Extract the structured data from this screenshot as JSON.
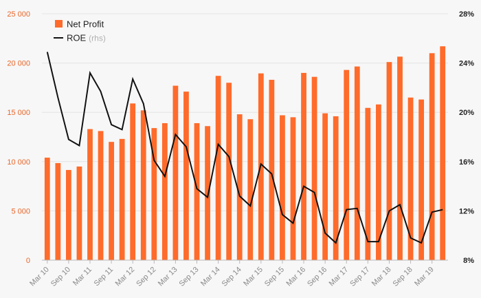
{
  "chart_data": {
    "type": "bar+line",
    "x": [
      "Mar 10",
      "Jun 10",
      "Sep 10",
      "Dec 10",
      "Mar 11",
      "Jun 11",
      "Sep 11",
      "Dec 11",
      "Mar 12",
      "Jun 12",
      "Sep 12",
      "Dec 12",
      "Mar 13",
      "Jun 13",
      "Sep 13",
      "Dec 13",
      "Mar 14",
      "Jun 14",
      "Sep 14",
      "Dec 14",
      "Mar 15",
      "Jun 15",
      "Sep 15",
      "Dec 15",
      "Mar 16",
      "Jun 16",
      "Sep 16",
      "Dec 16",
      "Mar 17",
      "Jun 17",
      "Sep 17",
      "Dec 17",
      "Mar 18",
      "Jun 18",
      "Sep 18",
      "Dec 18",
      "Mar 19",
      "Jun 19"
    ],
    "x_tick_labels": [
      "Mar 10",
      "Sep 10",
      "Mar 11",
      "Sep 11",
      "Mar 12",
      "Sep 12",
      "Mar 13",
      "Sep 13",
      "Mar 14",
      "Sep 14",
      "Mar 15",
      "Sep 15",
      "Mar 16",
      "Sep 16",
      "Mar 17",
      "Sep 17",
      "Mar 18",
      "Sep 18",
      "Mar 19"
    ],
    "series": [
      {
        "name": "Net Profit",
        "type": "bar",
        "axis": "left",
        "color": "#ff6b2b",
        "values": [
          10400,
          9850,
          9150,
          9500,
          13300,
          13100,
          12000,
          12300,
          15900,
          15200,
          13400,
          13900,
          17700,
          17100,
          13900,
          13600,
          18700,
          18000,
          14800,
          14300,
          18950,
          18300,
          14700,
          14500,
          19000,
          18600,
          14900,
          14600,
          19300,
          19650,
          15450,
          15800,
          20100,
          20650,
          16500,
          16300,
          21000,
          21700
        ]
      },
      {
        "name": "ROE",
        "legend_suffix": "(rhs)",
        "type": "line",
        "axis": "right",
        "color": "#111111",
        "values": [
          24.9,
          21.2,
          17.8,
          17.3,
          23.2,
          21.7,
          19.0,
          18.6,
          22.7,
          20.7,
          16.1,
          14.8,
          18.2,
          17.2,
          13.8,
          13.1,
          17.4,
          16.4,
          13.2,
          12.4,
          15.8,
          15.0,
          11.7,
          11.0,
          14.0,
          13.5,
          10.2,
          9.4,
          12.1,
          12.2,
          9.5,
          9.5,
          12.0,
          12.5,
          9.8,
          9.4,
          11.9,
          12.1
        ]
      }
    ],
    "y_left": {
      "lim": [
        0,
        25000
      ],
      "ticks": [
        0,
        5000,
        10000,
        15000,
        20000,
        25000
      ],
      "tick_labels": [
        "0",
        "5 000",
        "10 000",
        "15 000",
        "20 000",
        "25 000"
      ],
      "color": "#e8662a"
    },
    "y_right": {
      "lim": [
        8,
        28
      ],
      "ticks": [
        8,
        12,
        16,
        20,
        24,
        28
      ],
      "tick_labels": [
        "8%",
        "12%",
        "16%",
        "20%",
        "24%",
        "28%"
      ],
      "color": "#222222"
    },
    "grid": true,
    "legend_position": "top-left",
    "background": "#f7f7f7"
  }
}
